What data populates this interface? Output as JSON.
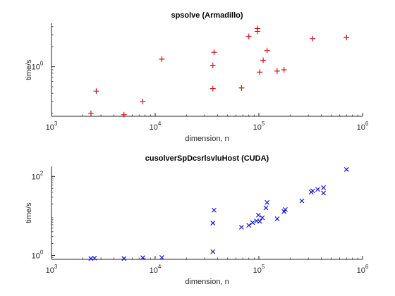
{
  "chart_data": [
    {
      "type": "scatter",
      "title": "spsolve (Armadillo)",
      "xlabel": "dimension, n",
      "ylabel": "time/s",
      "xscale": "log",
      "yscale": "log",
      "xlim": [
        1000,
        1000000
      ],
      "ylim": [
        0.18,
        4.5
      ],
      "x_ticks": [
        1000,
        10000,
        100000,
        1000000
      ],
      "x_tick_labels": [
        [
          "10",
          "3"
        ],
        [
          "10",
          "4"
        ],
        [
          "10",
          "5"
        ],
        [
          "10",
          "6"
        ]
      ],
      "y_ticks": [
        1
      ],
      "y_tick_labels": [
        [
          "10",
          "0"
        ]
      ],
      "grid": false,
      "marker": "+",
      "color": "#cc0000",
      "points": [
        [
          2400,
          0.2
        ],
        [
          2700,
          0.43
        ],
        [
          5000,
          0.19
        ],
        [
          7600,
          0.3
        ],
        [
          11600,
          1.3
        ],
        [
          36000,
          0.47
        ],
        [
          36000,
          1.05
        ],
        [
          37000,
          1.65
        ],
        [
          68000,
          0.48
        ],
        [
          80000,
          2.85
        ],
        [
          97000,
          3.4
        ],
        [
          97000,
          3.75
        ],
        [
          102000,
          0.83
        ],
        [
          110000,
          1.25
        ],
        [
          120000,
          1.75
        ],
        [
          150000,
          0.86
        ],
        [
          175000,
          0.9
        ],
        [
          330000,
          2.65
        ],
        [
          700000,
          2.75
        ]
      ]
    },
    {
      "type": "scatter",
      "title": "cusolverSpDcsrlsvluHost (CUDA)",
      "xlabel": "dimension, n",
      "ylabel": "time/s",
      "xscale": "log",
      "yscale": "log",
      "xlim": [
        1000,
        1000000
      ],
      "ylim": [
        0.8,
        180
      ],
      "x_ticks": [
        1000,
        10000,
        100000,
        1000000
      ],
      "x_tick_labels": [
        [
          "10",
          "3"
        ],
        [
          "10",
          "4"
        ],
        [
          "10",
          "5"
        ],
        [
          "10",
          "6"
        ]
      ],
      "y_ticks": [
        1,
        100
      ],
      "y_tick_labels": [
        [
          "10",
          "0"
        ],
        [
          "10",
          "2"
        ]
      ],
      "grid": false,
      "marker": "x",
      "color": "#0000dd",
      "points": [
        [
          2400,
          0.84
        ],
        [
          2600,
          0.86
        ],
        [
          5000,
          0.84
        ],
        [
          7600,
          0.88
        ],
        [
          11600,
          0.89
        ],
        [
          36000,
          1.25
        ],
        [
          36000,
          6.6
        ],
        [
          37000,
          14
        ],
        [
          68000,
          5.2
        ],
        [
          80000,
          5.8
        ],
        [
          87000,
          6.8
        ],
        [
          95000,
          7.5
        ],
        [
          99000,
          10.5
        ],
        [
          102000,
          7.3
        ],
        [
          108000,
          9
        ],
        [
          117000,
          16
        ],
        [
          120000,
          22
        ],
        [
          150000,
          8.5
        ],
        [
          175000,
          13
        ],
        [
          180000,
          14.5
        ],
        [
          260000,
          24
        ],
        [
          320000,
          40
        ],
        [
          330000,
          43
        ],
        [
          370000,
          47
        ],
        [
          420000,
          38
        ],
        [
          420000,
          52
        ],
        [
          700000,
          150
        ]
      ]
    }
  ]
}
